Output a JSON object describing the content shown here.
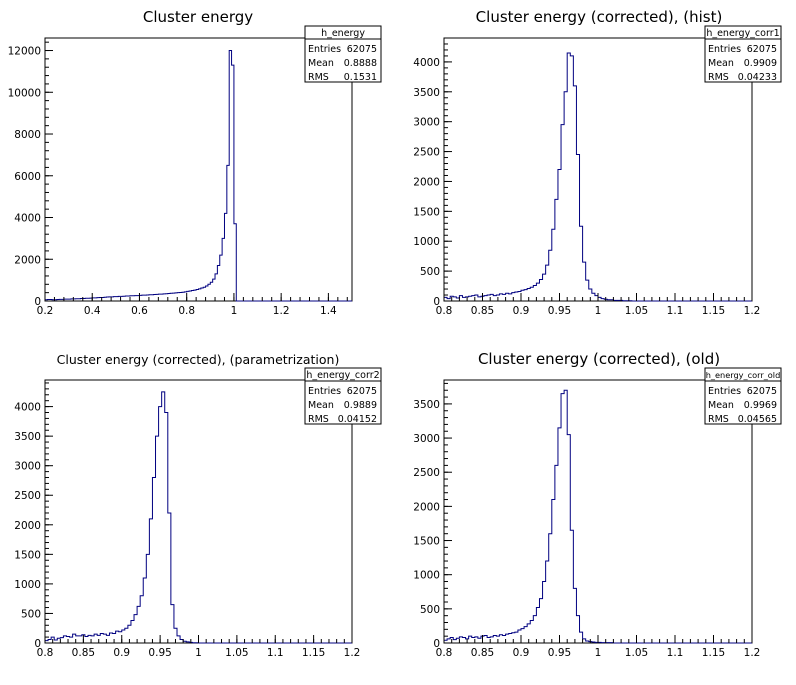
{
  "colors": {
    "histogram": "#000080",
    "axes": "#000000",
    "background": "#ffffff"
  },
  "chart_data": [
    {
      "type": "histogram",
      "title": "Cluster energy",
      "stats": {
        "name": "h_energy",
        "entries": "62075",
        "mean": "0.8888",
        "rms": "0.1531"
      },
      "xlim": [
        0.2,
        1.5
      ],
      "ylim": [
        0,
        12600
      ],
      "xticks": [
        0.2,
        0.4,
        0.6,
        0.8,
        1,
        1.2,
        1.4
      ],
      "xtick_labels": [
        "0.2",
        "0.4",
        "0.6",
        "0.8",
        "1",
        "1.2",
        "1.4"
      ],
      "yticks": [
        0,
        2000,
        4000,
        6000,
        8000,
        10000,
        12000
      ],
      "ytick_labels": [
        "0",
        "2000",
        "4000",
        "6000",
        "8000",
        "10000",
        "12000"
      ],
      "bin_start": 0.2,
      "bin_width": 0.01,
      "values": [
        60,
        70,
        70,
        60,
        60,
        70,
        80,
        80,
        90,
        90,
        90,
        100,
        100,
        110,
        110,
        120,
        120,
        130,
        130,
        140,
        150,
        150,
        160,
        170,
        170,
        180,
        190,
        200,
        200,
        210,
        210,
        220,
        220,
        230,
        240,
        240,
        250,
        250,
        260,
        260,
        270,
        280,
        280,
        290,
        300,
        300,
        310,
        320,
        330,
        330,
        340,
        350,
        360,
        370,
        380,
        390,
        400,
        410,
        420,
        440,
        460,
        480,
        500,
        520,
        550,
        580,
        620,
        660,
        720,
        800,
        900,
        1050,
        1300,
        1700,
        2200,
        3000,
        4200,
        6500,
        12000,
        11300,
        3700,
        0,
        0,
        0,
        0,
        0,
        0,
        0,
        0,
        0,
        0,
        0,
        0,
        0,
        0,
        0,
        0,
        0,
        0,
        0,
        0,
        0,
        0,
        0,
        0,
        0,
        0,
        0,
        0,
        0,
        0,
        0,
        0,
        0,
        0,
        0,
        0,
        0,
        0,
        0,
        0,
        0,
        0,
        0,
        0,
        0,
        0,
        0,
        0,
        0
      ]
    },
    {
      "type": "histogram",
      "title": "Cluster energy (corrected), (hist)",
      "stats": {
        "name": "h_energy_corr1",
        "entries": "62075",
        "mean": "0.9909",
        "rms": "0.04233"
      },
      "xlim": [
        0.8,
        1.2
      ],
      "ylim": [
        0,
        4400
      ],
      "xticks": [
        0.8,
        0.85,
        0.9,
        0.95,
        1,
        1.05,
        1.1,
        1.15,
        1.2
      ],
      "xtick_labels": [
        "0.8",
        "0.85",
        "0.9",
        "0.95",
        "1",
        "1.05",
        "1.1",
        "1.15",
        "1.2"
      ],
      "yticks": [
        0,
        500,
        1000,
        1500,
        2000,
        2500,
        3000,
        3500,
        4000
      ],
      "ytick_labels": [
        "0",
        "500",
        "1000",
        "1500",
        "2000",
        "2500",
        "3000",
        "3500",
        "4000"
      ],
      "bin_start": 0.8,
      "bin_width": 0.004,
      "values": [
        60,
        40,
        80,
        70,
        50,
        90,
        60,
        70,
        80,
        90,
        100,
        70,
        80,
        90,
        100,
        110,
        90,
        100,
        120,
        110,
        130,
        120,
        140,
        150,
        160,
        180,
        190,
        210,
        230,
        260,
        300,
        360,
        450,
        600,
        850,
        1200,
        1700,
        2200,
        2950,
        3500,
        4150,
        4100,
        3600,
        2450,
        1250,
        650,
        350,
        200,
        130,
        90,
        60,
        40,
        30,
        20,
        20,
        10,
        10,
        10,
        5,
        5,
        5,
        0,
        0,
        0,
        0,
        0,
        0,
        0,
        0,
        0,
        0,
        0,
        0,
        0,
        0,
        0,
        0,
        0,
        0,
        0,
        0,
        0,
        0,
        0,
        0,
        0,
        0,
        0,
        0,
        0,
        0,
        0,
        0,
        0,
        0,
        0,
        0,
        0,
        0,
        0
      ]
    },
    {
      "type": "histogram",
      "title": "Cluster energy (corrected), (parametrization)",
      "stats": {
        "name": "h_energy_corr2",
        "entries": "62075",
        "mean": "0.9889",
        "rms": "0.04152"
      },
      "xlim": [
        0.8,
        1.2
      ],
      "ylim": [
        0,
        4450
      ],
      "xticks": [
        0.8,
        0.85,
        0.9,
        0.95,
        1,
        1.05,
        1.1,
        1.15,
        1.2
      ],
      "xtick_labels": [
        "0.8",
        "0.85",
        "0.9",
        "0.95",
        "1",
        "1.05",
        "1.1",
        "1.15",
        "1.2"
      ],
      "yticks": [
        0,
        500,
        1000,
        1500,
        2000,
        2500,
        3000,
        3500,
        4000
      ],
      "ytick_labels": [
        "0",
        "500",
        "1000",
        "1500",
        "2000",
        "2500",
        "3000",
        "3500",
        "4000"
      ],
      "bin_start": 0.8,
      "bin_width": 0.004,
      "values": [
        40,
        60,
        100,
        50,
        80,
        90,
        120,
        110,
        100,
        150,
        120,
        120,
        140,
        110,
        130,
        120,
        150,
        130,
        160,
        150,
        130,
        170,
        160,
        200,
        190,
        220,
        250,
        300,
        380,
        480,
        620,
        800,
        1100,
        1500,
        2100,
        2800,
        3500,
        4000,
        4250,
        3900,
        2200,
        650,
        250,
        120,
        60,
        30,
        20,
        10,
        5,
        5,
        0,
        0,
        0,
        0,
        0,
        0,
        0,
        0,
        0,
        0,
        0,
        0,
        0,
        0,
        0,
        0,
        0,
        0,
        0,
        0,
        0,
        0,
        0,
        0,
        0,
        0,
        0,
        0,
        0,
        0,
        0,
        0,
        0,
        0,
        0,
        0,
        0,
        0,
        0,
        0,
        0,
        0,
        0,
        0,
        0,
        0,
        0,
        0,
        0,
        0
      ]
    },
    {
      "type": "histogram",
      "title": "Cluster energy (corrected), (old)",
      "stats": {
        "name": "h_energy_corr_old",
        "entries": "62075",
        "mean": "0.9969",
        "rms": "0.04565"
      },
      "xlim": [
        0.8,
        1.2
      ],
      "ylim": [
        0,
        3850
      ],
      "xticks": [
        0.8,
        0.85,
        0.9,
        0.95,
        1,
        1.05,
        1.1,
        1.15,
        1.2
      ],
      "xtick_labels": [
        "0.8",
        "0.85",
        "0.9",
        "0.95",
        "1",
        "1.05",
        "1.1",
        "1.15",
        "1.2"
      ],
      "yticks": [
        0,
        500,
        1000,
        1500,
        2000,
        2500,
        3000,
        3500
      ],
      "ytick_labels": [
        "0",
        "500",
        "1000",
        "1500",
        "2000",
        "2500",
        "3000",
        "3500"
      ],
      "bin_start": 0.8,
      "bin_width": 0.004,
      "values": [
        40,
        60,
        80,
        50,
        70,
        90,
        80,
        60,
        100,
        80,
        90,
        70,
        100,
        110,
        80,
        90,
        110,
        100,
        120,
        110,
        130,
        140,
        150,
        160,
        190,
        210,
        240,
        280,
        330,
        400,
        520,
        650,
        900,
        1200,
        1600,
        2100,
        2600,
        3150,
        3650,
        3700,
        3050,
        1650,
        800,
        400,
        160,
        60,
        30,
        20,
        15,
        10,
        10,
        5,
        5,
        5,
        5,
        0,
        0,
        0,
        0,
        0,
        0,
        0,
        0,
        0,
        0,
        0,
        0,
        0,
        0,
        0,
        0,
        0,
        0,
        0,
        0,
        0,
        0,
        0,
        0,
        0,
        0,
        0,
        0,
        0,
        0,
        0,
        0,
        0,
        0,
        0,
        0,
        0,
        0,
        0,
        0,
        0,
        0,
        0,
        0,
        0
      ]
    }
  ]
}
